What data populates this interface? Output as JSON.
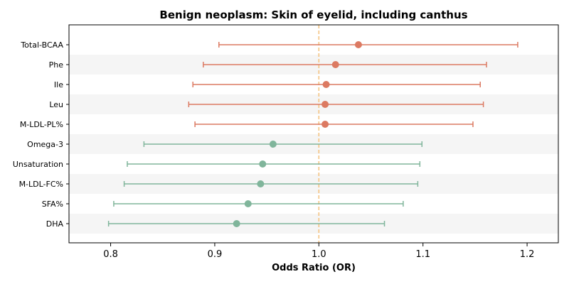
{
  "chart_data": {
    "type": "forest",
    "title": "Benign neoplasm: Skin of eyelid, including canthus",
    "xlabel": "Odds Ratio (OR)",
    "xlim": [
      0.76,
      1.23
    ],
    "xticks": [
      0.8,
      0.9,
      1.0,
      1.1,
      1.2
    ],
    "xtick_labels": [
      "0.8",
      "0.9",
      "1.0",
      "1.1",
      "1.2"
    ],
    "reference_line": 1.0,
    "reference_color": "#f5c07a",
    "row_band_color": "#f5f5f5",
    "grid": false,
    "categories": [
      "Total-BCAA",
      "Phe",
      "Ile",
      "Leu",
      "M-LDL-PL%",
      "Omega-3",
      "Unsaturation",
      "M-LDL-FC%",
      "SFA%",
      "DHA"
    ],
    "points": [
      {
        "label": "Total-BCAA",
        "or": 1.038,
        "lower": 0.904,
        "upper": 1.191,
        "color": "#dc7a62"
      },
      {
        "label": "Phe",
        "or": 1.016,
        "lower": 0.889,
        "upper": 1.161,
        "color": "#dc7a62"
      },
      {
        "label": "Ile",
        "or": 1.007,
        "lower": 0.879,
        "upper": 1.155,
        "color": "#dc7a62"
      },
      {
        "label": "Leu",
        "or": 1.006,
        "lower": 0.875,
        "upper": 1.158,
        "color": "#dc7a62"
      },
      {
        "label": "M-LDL-PL%",
        "or": 1.006,
        "lower": 0.881,
        "upper": 1.148,
        "color": "#dc7a62"
      },
      {
        "label": "Omega-3",
        "or": 0.956,
        "lower": 0.832,
        "upper": 1.099,
        "color": "#80b59b"
      },
      {
        "label": "Unsaturation",
        "or": 0.946,
        "lower": 0.816,
        "upper": 1.097,
        "color": "#80b59b"
      },
      {
        "label": "M-LDL-FC%",
        "or": 0.944,
        "lower": 0.813,
        "upper": 1.095,
        "color": "#80b59b"
      },
      {
        "label": "SFA%",
        "or": 0.932,
        "lower": 0.803,
        "upper": 1.081,
        "color": "#80b59b"
      },
      {
        "label": "DHA",
        "or": 0.921,
        "lower": 0.798,
        "upper": 1.063,
        "color": "#80b59b"
      }
    ]
  }
}
